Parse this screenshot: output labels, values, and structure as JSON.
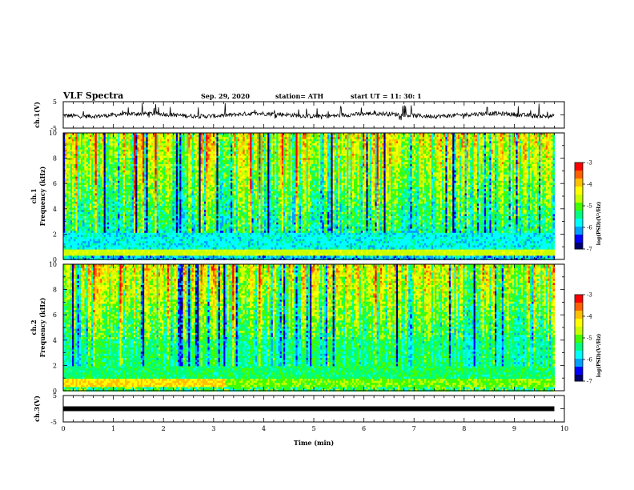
{
  "header": {
    "title": "VLF Spectra",
    "date": "Sep. 29, 2020",
    "station": "station= ATH",
    "start": "start  UT  =   11: 30: 1"
  },
  "chart_data": {
    "type": "heatmap",
    "x_axis": {
      "label": "Time  (min)",
      "range": [
        0,
        10
      ],
      "ticks": [
        "0",
        "1",
        "2",
        "3",
        "4",
        "5",
        "6",
        "7",
        "8",
        "9",
        "10"
      ]
    },
    "panels": [
      {
        "name": "ch.1(V)",
        "type": "line",
        "ylabel": "ch.1(V)",
        "yticks": [
          "5",
          "-5"
        ],
        "ylim": [
          -5,
          5
        ],
        "data_end_min": 9.8
      },
      {
        "name": "ch.1 spectrogram",
        "type": "heatmap",
        "ylabel_top": "ch.1",
        "ylabel": "Frequency  (kHz)",
        "ylim": [
          0,
          10
        ],
        "yticks": [
          "0",
          "2",
          "4",
          "6",
          "8",
          "10"
        ],
        "colorbar": {
          "label": "log(PSD)(V²/Hz)",
          "range": [
            -7,
            -3
          ],
          "ticks": [
            "-3",
            "-4",
            "-5",
            "-6",
            "-7"
          ]
        },
        "data_end_min": 9.8
      },
      {
        "name": "ch.2 spectrogram",
        "type": "heatmap",
        "ylabel_top": "ch.2",
        "ylabel": "Frequency  (kHz)",
        "ylim": [
          0,
          10
        ],
        "yticks": [
          "0",
          "2",
          "4",
          "6",
          "8",
          "10"
        ],
        "colorbar": {
          "label": "log(PSD)(V²/Hz)",
          "range": [
            -7,
            -3
          ],
          "ticks": [
            "-3",
            "-4",
            "-5",
            "-6",
            "-7"
          ]
        },
        "data_end_min": 9.8
      },
      {
        "name": "ch.3(V)",
        "type": "line",
        "ylabel": "ch.3(V)",
        "yticks": [
          "5",
          "-5"
        ],
        "ylim": [
          -5,
          5
        ],
        "flat_value": 0,
        "data_end_min": 9.8
      }
    ],
    "colors": {
      "palette": [
        "#00006e",
        "#0000ff",
        "#00a0ff",
        "#00ffff",
        "#00ff80",
        "#40ff00",
        "#c8ff00",
        "#ffff00",
        "#ffc000",
        "#ff6000",
        "#ff0000",
        "#ffffff"
      ]
    }
  }
}
